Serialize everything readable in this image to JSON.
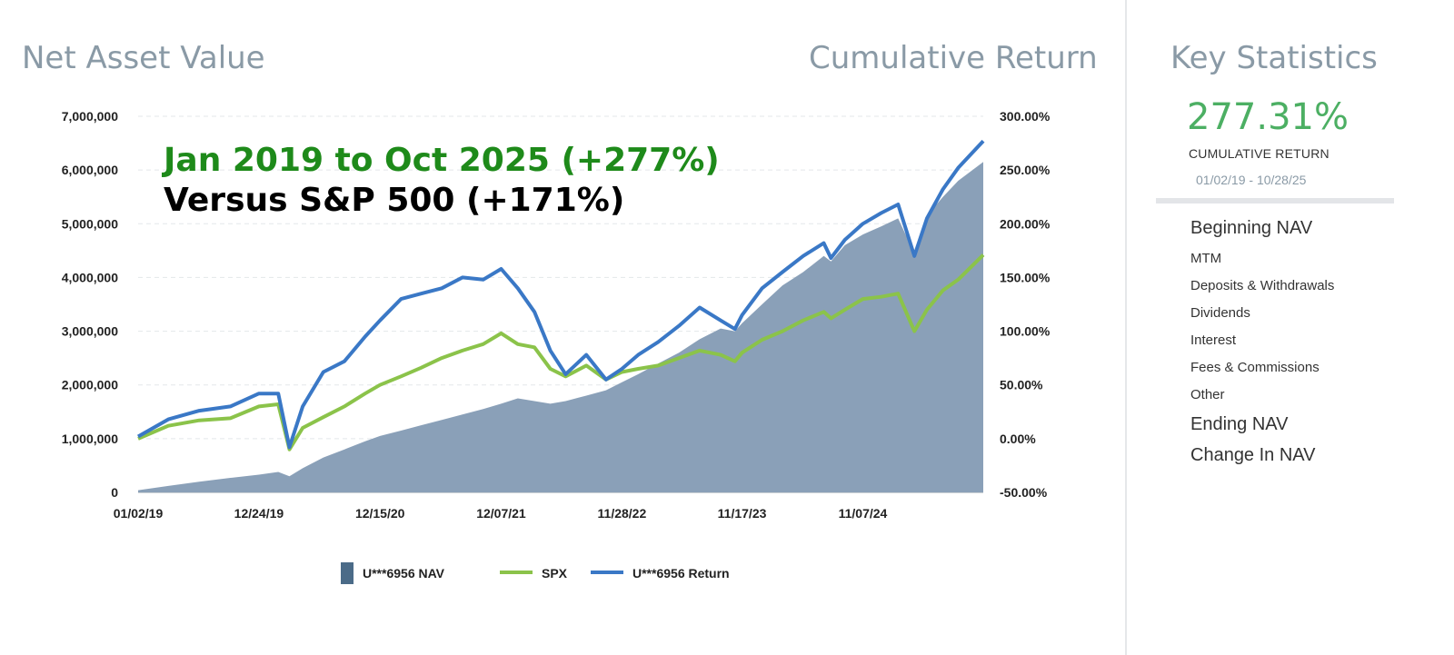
{
  "header": {
    "nav_title": "Net Asset Value",
    "return_title": "Cumulative Return"
  },
  "overlay": {
    "line1": "Jan 2019 to Oct 2025 (+277%)",
    "line2": "Versus S&P 500 (+171%)",
    "line1_color": "#1e8a1a",
    "line2_color": "#000000"
  },
  "chart_data": {
    "type": "area",
    "x_labels": [
      "01/02/19",
      "12/24/19",
      "12/15/20",
      "12/07/21",
      "11/28/22",
      "11/17/23",
      "11/07/24"
    ],
    "y_left_ticks": [
      "7,000,000",
      "6,000,000",
      "5,000,000",
      "4,000,000",
      "3,000,000",
      "2,000,000",
      "1,000,000",
      "0"
    ],
    "y_right_ticks": [
      "300.00%",
      "250.00%",
      "200.00%",
      "150.00%",
      "100.00%",
      "50.00%",
      "0.00%",
      "-50.00%"
    ],
    "ylim_left": [
      0,
      7000000
    ],
    "ylim_right": [
      -50,
      300
    ],
    "x_dates": [
      "01/02/19",
      "04/01/19",
      "07/01/19",
      "10/01/19",
      "12/24/19",
      "02/19/20",
      "03/23/20",
      "05/01/20",
      "07/01/20",
      "09/01/20",
      "11/01/20",
      "12/15/20",
      "02/15/21",
      "04/15/21",
      "06/15/21",
      "08/15/21",
      "10/15/21",
      "12/07/21",
      "01/25/22",
      "03/15/22",
      "05/01/22",
      "06/15/22",
      "08/15/22",
      "10/12/22",
      "11/28/22",
      "01/15/23",
      "03/15/23",
      "05/15/23",
      "07/15/23",
      "09/15/23",
      "10/27/23",
      "11/17/23",
      "01/15/24",
      "03/15/24",
      "05/15/24",
      "07/15/24",
      "08/05/24",
      "09/15/24",
      "11/07/24",
      "12/31/24",
      "02/19/25",
      "04/08/25",
      "05/15/25",
      "07/01/25",
      "08/15/25",
      "10/28/25"
    ],
    "series": [
      {
        "name": "U***6956 NAV",
        "color": "#8aa0b8",
        "legend_color": "#4b6b88",
        "values": [
          40000,
          120000,
          200000,
          270000,
          330000,
          380000,
          300000,
          450000,
          650000,
          800000,
          950000,
          1050000,
          1150000,
          1250000,
          1350000,
          1450000,
          1550000,
          1650000,
          1750000,
          1700000,
          1650000,
          1700000,
          1800000,
          1900000,
          2050000,
          2200000,
          2400000,
          2600000,
          2850000,
          3050000,
          3000000,
          3150000,
          3500000,
          3850000,
          4100000,
          4400000,
          4300000,
          4600000,
          4800000,
          4950000,
          5100000,
          4450000,
          5150000,
          5500000,
          5800000,
          6150000
        ]
      },
      {
        "name": "SPX",
        "color": "#8bc34a",
        "values": [
          0,
          12,
          17,
          19,
          30,
          32,
          -10,
          10,
          20,
          30,
          42,
          50,
          58,
          66,
          75,
          82,
          88,
          98,
          88,
          85,
          65,
          58,
          68,
          55,
          62,
          65,
          68,
          75,
          82,
          78,
          72,
          80,
          92,
          100,
          110,
          118,
          112,
          120,
          130,
          132,
          135,
          100,
          120,
          138,
          148,
          171
        ]
      },
      {
        "name": "U***6956 Return",
        "color": "#3a78c6",
        "values": [
          2,
          18,
          26,
          30,
          42,
          42,
          -8,
          30,
          62,
          72,
          95,
          110,
          130,
          135,
          140,
          150,
          148,
          158,
          140,
          118,
          82,
          60,
          78,
          55,
          65,
          78,
          90,
          105,
          122,
          110,
          102,
          115,
          140,
          155,
          170,
          182,
          168,
          185,
          200,
          210,
          218,
          170,
          205,
          232,
          252,
          277
        ]
      }
    ]
  },
  "legend": [
    {
      "label": "U***6956 NAV",
      "color": "#4b6b88"
    },
    {
      "label": "SPX",
      "color": "#8bc34a"
    },
    {
      "label": "U***6956 Return",
      "color": "#3a78c6"
    }
  ],
  "stats": {
    "title": "Key Statistics",
    "value": "277.31%",
    "value_label": "CUMULATIVE RETURN",
    "date_range": "01/02/19 - 10/28/25",
    "items": [
      {
        "label": "Beginning NAV",
        "size": "big"
      },
      {
        "label": "MTM",
        "size": "small"
      },
      {
        "label": "Deposits & Withdrawals",
        "size": "small"
      },
      {
        "label": "Dividends",
        "size": "small"
      },
      {
        "label": "Interest",
        "size": "small"
      },
      {
        "label": "Fees & Commissions",
        "size": "small"
      },
      {
        "label": "Other",
        "size": "small"
      },
      {
        "label": "Ending NAV",
        "size": "big"
      },
      {
        "label": "Change In NAV",
        "size": "big"
      }
    ],
    "accent_color": "#4caf63"
  }
}
